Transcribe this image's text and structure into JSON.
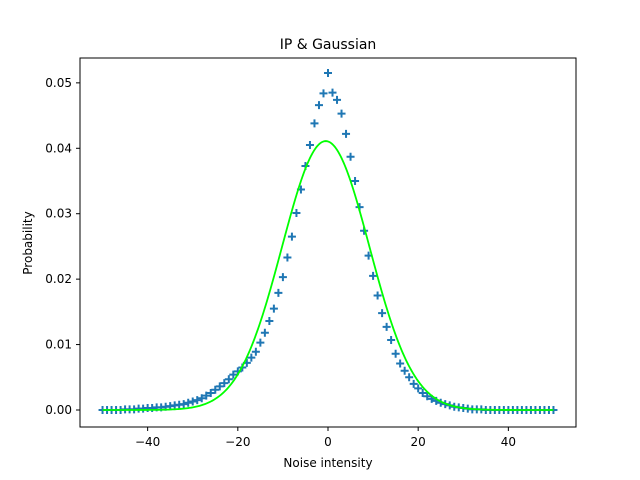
{
  "chart_data": {
    "type": "scatter",
    "title": "IP & Gaussian",
    "xlabel": "Noise intensity",
    "ylabel": "Probability",
    "xlim": [
      -55,
      55
    ],
    "ylim": [
      -0.0026,
      0.0538
    ],
    "xticks": [
      -40,
      -20,
      0,
      20,
      40
    ],
    "xtick_labels": [
      "−40",
      "−20",
      "0",
      "20",
      "40"
    ],
    "yticks": [
      0.0,
      0.01,
      0.02,
      0.03,
      0.04,
      0.05
    ],
    "ytick_labels": [
      "0.00",
      "0.01",
      "0.02",
      "0.03",
      "0.04",
      "0.05"
    ],
    "grid": false,
    "legend": "none",
    "series": [
      {
        "kind": "scatter",
        "marker": "+",
        "color": "#1f77b4",
        "x": [
          -50,
          -49,
          -48,
          -47,
          -46,
          -45,
          -44,
          -43,
          -42,
          -41,
          -40,
          -39,
          -38,
          -37,
          -36,
          -35,
          -34,
          -33,
          -32,
          -31,
          -30,
          -29,
          -28,
          -27,
          -26,
          -25,
          -24,
          -23,
          -22,
          -21,
          -20,
          -19,
          -18,
          -17,
          -16,
          -15,
          -14,
          -13,
          -12,
          -11,
          -10,
          -9,
          -8,
          -7,
          -6,
          -5,
          -4,
          -3,
          -2,
          -1,
          0,
          1,
          2,
          3,
          4,
          5,
          6,
          7,
          8,
          9,
          10,
          11,
          12,
          13,
          14,
          15,
          16,
          17,
          18,
          19,
          20,
          21,
          22,
          23,
          24,
          25,
          26,
          27,
          28,
          29,
          30,
          31,
          32,
          33,
          34,
          35,
          36,
          37,
          38,
          39,
          40,
          41,
          42,
          43,
          44,
          45,
          46,
          47,
          48,
          49,
          50
        ],
        "y": [
          0.0,
          0.0,
          0.0,
          0.0,
          0.0,
          0.0001,
          0.0001,
          0.0001,
          0.0002,
          0.0002,
          0.0003,
          0.0003,
          0.0004,
          0.0004,
          0.0005,
          0.0006,
          0.0007,
          0.0008,
          0.0009,
          0.0011,
          0.0013,
          0.0015,
          0.0018,
          0.0022,
          0.0026,
          0.0031,
          0.0036,
          0.0041,
          0.0047,
          0.0054,
          0.0059,
          0.0065,
          0.0072,
          0.008,
          0.0089,
          0.0103,
          0.0118,
          0.0136,
          0.0155,
          0.0179,
          0.0203,
          0.0233,
          0.0265,
          0.0301,
          0.0337,
          0.0373,
          0.0405,
          0.0438,
          0.0466,
          0.0484,
          0.0515,
          0.0485,
          0.0474,
          0.0453,
          0.0422,
          0.0387,
          0.035,
          0.031,
          0.0274,
          0.0236,
          0.0205,
          0.0175,
          0.0148,
          0.0127,
          0.0107,
          0.0086,
          0.0071,
          0.006,
          0.005,
          0.004,
          0.0033,
          0.0026,
          0.0021,
          0.0017,
          0.0014,
          0.0011,
          0.0009,
          0.0007,
          0.0005,
          0.0004,
          0.0003,
          0.0002,
          0.0001,
          0.0001,
          0.0001,
          0.0,
          0.0,
          0.0,
          0.0,
          0.0,
          0.0,
          0.0,
          0.0,
          0.0,
          0.0,
          0.0,
          0.0,
          0.0,
          0.0,
          0.0,
          0.0
        ]
      },
      {
        "kind": "line",
        "color": "#00ff00",
        "mean": -0.5,
        "std": 9.7,
        "x_range": [
          -50,
          50
        ],
        "peak": 0.0411
      }
    ]
  }
}
